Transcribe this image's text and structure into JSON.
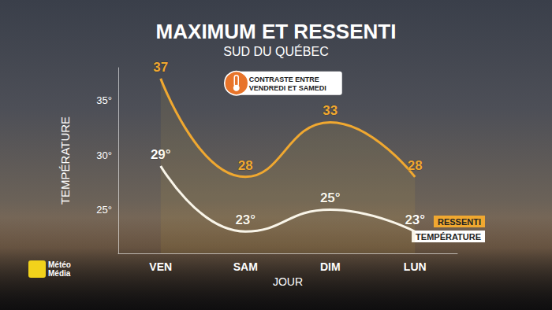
{
  "chart_data": {
    "type": "line",
    "title": "MAXIMUM ET RESSENTI",
    "subtitle": "SUD DU QUÉBEC",
    "annotations": [
      "CONTRASTE ENTRE\nVENDREDI ET SAMEDI"
    ],
    "logo": "Météo\nMédia",
    "x_label": "JOUR",
    "y_label": "TEMPÉRATURE",
    "categories": [
      "VEN",
      "SAM",
      "DIM",
      "LUN"
    ],
    "series": [
      {
        "name": "RESSENTI",
        "color": "#f0a830",
        "values": [
          37,
          28,
          33,
          28
        ]
      },
      {
        "name": "TEMPÉRATURE",
        "color": "#ffffff",
        "values": [
          29,
          23,
          25,
          23
        ],
        "value_labels": [
          "29°",
          "23°",
          "25°",
          "23°"
        ]
      }
    ],
    "ylim": [
      21,
      38
    ],
    "yticks": [
      {
        "value": 25,
        "label": "25°"
      },
      {
        "value": 30,
        "label": "30°"
      },
      {
        "value": 35,
        "label": "35°"
      }
    ],
    "grid": false,
    "legend": "lower right",
    "data_labels": true,
    "line_style": "solid"
  }
}
